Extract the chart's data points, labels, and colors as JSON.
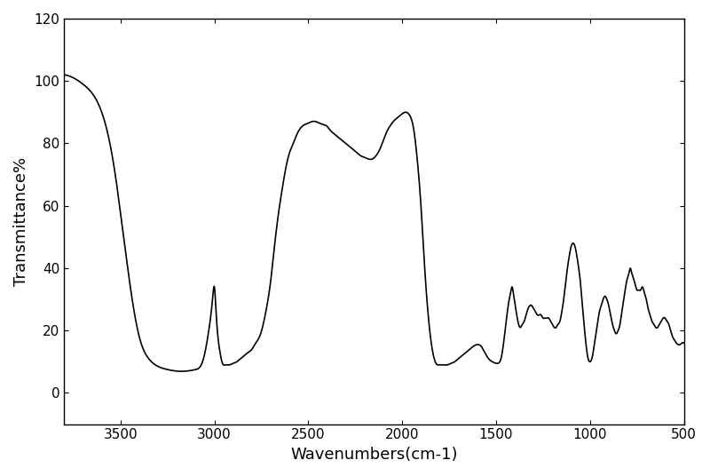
{
  "title": "",
  "xlabel": "Wavenumbers(cm-1)",
  "ylabel": "Transmittance%",
  "xlim": [
    500,
    3800
  ],
  "ylim": [
    -10,
    120
  ],
  "xticks": [
    500,
    1000,
    1500,
    2000,
    2500,
    3000,
    3500
  ],
  "yticks": [
    0,
    20,
    40,
    60,
    80,
    100,
    120
  ],
  "line_color": "#000000",
  "line_width": 1.2,
  "background_color": "#ffffff",
  "keypoints": [
    [
      3800,
      102
    ],
    [
      3750,
      101
    ],
    [
      3700,
      99
    ],
    [
      3650,
      96
    ],
    [
      3600,
      90
    ],
    [
      3550,
      78
    ],
    [
      3500,
      58
    ],
    [
      3450,
      35
    ],
    [
      3400,
      18
    ],
    [
      3350,
      11
    ],
    [
      3300,
      8.5
    ],
    [
      3250,
      7.5
    ],
    [
      3200,
      7
    ],
    [
      3150,
      7
    ],
    [
      3100,
      7.5
    ],
    [
      3070,
      9
    ],
    [
      3050,
      13
    ],
    [
      3030,
      20
    ],
    [
      3010,
      30
    ],
    [
      3000,
      34
    ],
    [
      2990,
      25
    ],
    [
      2970,
      13
    ],
    [
      2960,
      10
    ],
    [
      2940,
      9
    ],
    [
      2920,
      9
    ],
    [
      2900,
      9.5
    ],
    [
      2880,
      10
    ],
    [
      2860,
      11
    ],
    [
      2840,
      12
    ],
    [
      2820,
      13
    ],
    [
      2800,
      14
    ],
    [
      2780,
      16
    ],
    [
      2760,
      18
    ],
    [
      2740,
      22
    ],
    [
      2720,
      28
    ],
    [
      2700,
      36
    ],
    [
      2680,
      47
    ],
    [
      2660,
      57
    ],
    [
      2640,
      65
    ],
    [
      2620,
      72
    ],
    [
      2600,
      77
    ],
    [
      2580,
      80
    ],
    [
      2560,
      83
    ],
    [
      2540,
      85
    ],
    [
      2520,
      86
    ],
    [
      2500,
      86.5
    ],
    [
      2480,
      87
    ],
    [
      2460,
      87
    ],
    [
      2440,
      86.5
    ],
    [
      2420,
      86
    ],
    [
      2400,
      85.5
    ],
    [
      2380,
      84
    ],
    [
      2360,
      83
    ],
    [
      2340,
      82
    ],
    [
      2320,
      81
    ],
    [
      2300,
      80
    ],
    [
      2280,
      79
    ],
    [
      2260,
      78
    ],
    [
      2240,
      77
    ],
    [
      2220,
      76
    ],
    [
      2200,
      75.5
    ],
    [
      2180,
      75
    ],
    [
      2160,
      75
    ],
    [
      2140,
      76
    ],
    [
      2120,
      78
    ],
    [
      2100,
      81
    ],
    [
      2080,
      84
    ],
    [
      2060,
      86
    ],
    [
      2040,
      87.5
    ],
    [
      2020,
      88.5
    ],
    [
      2000,
      89.5
    ],
    [
      1980,
      90
    ],
    [
      1960,
      89
    ],
    [
      1940,
      85
    ],
    [
      1920,
      75
    ],
    [
      1900,
      60
    ],
    [
      1880,
      40
    ],
    [
      1860,
      24
    ],
    [
      1840,
      14
    ],
    [
      1820,
      9.5
    ],
    [
      1800,
      9
    ],
    [
      1780,
      9
    ],
    [
      1760,
      9
    ],
    [
      1740,
      9.5
    ],
    [
      1720,
      10
    ],
    [
      1700,
      11
    ],
    [
      1680,
      12
    ],
    [
      1660,
      13
    ],
    [
      1640,
      14
    ],
    [
      1620,
      15
    ],
    [
      1600,
      15.5
    ],
    [
      1580,
      15
    ],
    [
      1560,
      13
    ],
    [
      1540,
      11
    ],
    [
      1520,
      10
    ],
    [
      1500,
      9.5
    ],
    [
      1490,
      9.5
    ],
    [
      1480,
      10
    ],
    [
      1470,
      12
    ],
    [
      1460,
      16
    ],
    [
      1450,
      21
    ],
    [
      1440,
      26
    ],
    [
      1430,
      30
    ],
    [
      1420,
      33
    ],
    [
      1415,
      34
    ],
    [
      1410,
      33
    ],
    [
      1400,
      29
    ],
    [
      1390,
      25
    ],
    [
      1380,
      22
    ],
    [
      1370,
      21
    ],
    [
      1360,
      22
    ],
    [
      1350,
      23
    ],
    [
      1340,
      25
    ],
    [
      1330,
      27
    ],
    [
      1320,
      28
    ],
    [
      1310,
      28
    ],
    [
      1300,
      27
    ],
    [
      1290,
      26
    ],
    [
      1280,
      25
    ],
    [
      1270,
      25
    ],
    [
      1260,
      25
    ],
    [
      1250,
      24
    ],
    [
      1240,
      24
    ],
    [
      1230,
      24
    ],
    [
      1220,
      24
    ],
    [
      1210,
      23
    ],
    [
      1200,
      22
    ],
    [
      1190,
      21
    ],
    [
      1180,
      21
    ],
    [
      1170,
      22
    ],
    [
      1160,
      23
    ],
    [
      1150,
      26
    ],
    [
      1140,
      30
    ],
    [
      1130,
      35
    ],
    [
      1120,
      40
    ],
    [
      1110,
      44
    ],
    [
      1100,
      47
    ],
    [
      1090,
      48
    ],
    [
      1080,
      47
    ],
    [
      1070,
      44
    ],
    [
      1060,
      40
    ],
    [
      1050,
      35
    ],
    [
      1040,
      28
    ],
    [
      1030,
      21
    ],
    [
      1020,
      15
    ],
    [
      1010,
      11
    ],
    [
      1000,
      10
    ],
    [
      990,
      11
    ],
    [
      980,
      14
    ],
    [
      970,
      18
    ],
    [
      960,
      22
    ],
    [
      950,
      26
    ],
    [
      940,
      28
    ],
    [
      930,
      30
    ],
    [
      920,
      31
    ],
    [
      910,
      30
    ],
    [
      900,
      28
    ],
    [
      890,
      25
    ],
    [
      880,
      22
    ],
    [
      870,
      20
    ],
    [
      860,
      19
    ],
    [
      850,
      20
    ],
    [
      840,
      22
    ],
    [
      830,
      26
    ],
    [
      820,
      30
    ],
    [
      810,
      34
    ],
    [
      800,
      37
    ],
    [
      790,
      39
    ],
    [
      785,
      40
    ],
    [
      780,
      39
    ],
    [
      770,
      37
    ],
    [
      760,
      35
    ],
    [
      750,
      33
    ],
    [
      740,
      33
    ],
    [
      730,
      33
    ],
    [
      720,
      34
    ],
    [
      710,
      32
    ],
    [
      700,
      30
    ],
    [
      690,
      27
    ],
    [
      680,
      25
    ],
    [
      670,
      23
    ],
    [
      660,
      22
    ],
    [
      650,
      21
    ],
    [
      640,
      21
    ],
    [
      630,
      22
    ],
    [
      620,
      23
    ],
    [
      610,
      24
    ],
    [
      600,
      24
    ],
    [
      590,
      23
    ],
    [
      580,
      22
    ],
    [
      570,
      20
    ],
    [
      560,
      18
    ],
    [
      550,
      17
    ],
    [
      540,
      16
    ],
    [
      530,
      15.5
    ],
    [
      520,
      15.5
    ],
    [
      510,
      16
    ],
    [
      500,
      16
    ]
  ]
}
